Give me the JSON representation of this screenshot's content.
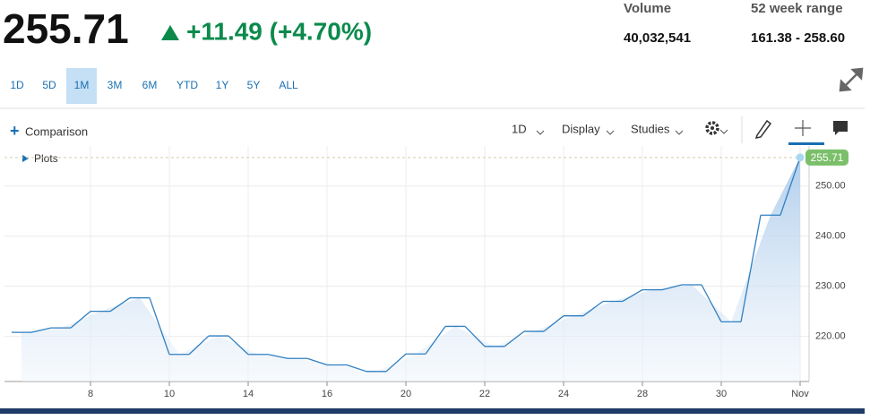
{
  "header": {
    "change": "+11.49 (+4.70%)",
    "volume_label": "Volume",
    "volume": "40,032,541",
    "range_label": "52 week range",
    "range": "161.38 - 258.60"
  },
  "range_buttons": {
    "items": [
      "1D",
      "5D",
      "1M",
      "3M",
      "6M",
      "YTD",
      "1Y",
      "5Y",
      "ALL"
    ],
    "selected": 2
  },
  "toolbar": {
    "comparison": "Comparison",
    "interval": "1D",
    "display": "Display",
    "studies": "Studies",
    "plots": "Plots"
  },
  "chart_data": {
    "type": "line",
    "categories": [
      null,
      null,
      "8",
      null,
      "10",
      null,
      "14",
      null,
      "16",
      null,
      "20",
      null,
      "22",
      null,
      "24",
      null,
      "28",
      null,
      "30",
      null,
      "Nov"
    ],
    "values": [
      220.8,
      221.7,
      225.0,
      227.7,
      216.4,
      220.1,
      216.4,
      215.6,
      214.3,
      213.0,
      216.5,
      222.0,
      218.0,
      221.0,
      224.1,
      227.0,
      229.3,
      230.3,
      222.9,
      244.2,
      255.71
    ],
    "color": "#2f7fc1",
    "last_color": "#7bbf6a",
    "ylim": [
      211,
      258
    ],
    "yticks": [
      {
        "value": 220,
        "label": "220.00"
      },
      {
        "value": 230,
        "label": "230.00"
      },
      {
        "value": 240,
        "label": "240.00"
      },
      {
        "value": 250,
        "label": "250.00"
      }
    ],
    "grid": true
  }
}
